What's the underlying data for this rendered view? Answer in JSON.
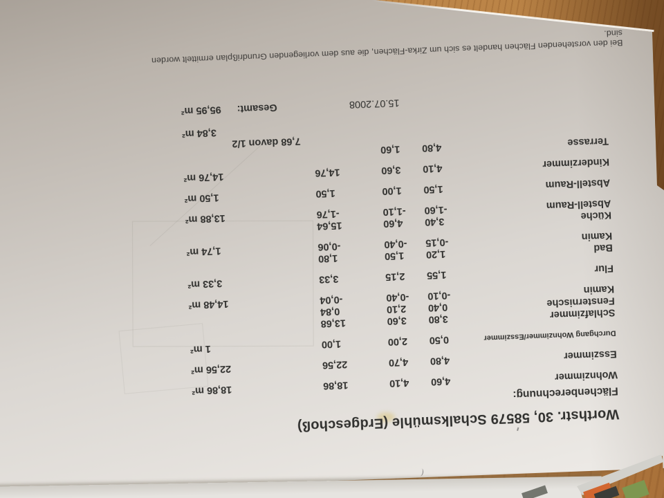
{
  "photo": {
    "surface": "wood-table",
    "wood_color": "#c08a4e",
    "paper_color": "#d9d5d0",
    "text_color": "#30302e"
  },
  "doc": {
    "title": "Worthstr. 30, 58579 Schalksmühle (Erdgeschoß)",
    "section_heading": "Flächenberechnung:",
    "date": "15.07.2008",
    "gesamt_label": "Gesamt:",
    "gesamt_value": "95,95 m²",
    "footer_note": "Bei den vorstehenden Flächen handelt es sich um Zirka-Flächen, die aus dem vorliegenden Grundrißplan ermittelt worden sind.",
    "table": {
      "rows": [
        {
          "name": "Wohnzimmer",
          "d1": "4,60",
          "d2": "4,10",
          "area": "18,86",
          "total": "18,86 m²"
        },
        {
          "name": "Esszimmer",
          "d1": "4,80",
          "d2": "4,70",
          "area": "22,56",
          "total": "22,56 m²"
        },
        {
          "name": "Durchgang Wohnzimmer/Esszimmer",
          "d1": "0,50",
          "d2": "2,00",
          "area": "1,00",
          "total": "1 m²"
        },
        {
          "name": "Schlafzimmer",
          "d1": "3,80",
          "d2": "3,60",
          "area": "13,68",
          "total": ""
        },
        {
          "name": "Fensternische",
          "d1": "0,40",
          "d2": "2,10",
          "area": "0,84",
          "total": ""
        },
        {
          "name": "Kamin",
          "d1": "-0,10",
          "d2": "-0,40",
          "area": "-0,04",
          "total": "14,48 m²"
        },
        {
          "name": "Flur",
          "d1": "1,55",
          "d2": "2,15",
          "area": "3,33",
          "total": "3,33 m²"
        },
        {
          "name": "Bad",
          "d1": "1,20",
          "d2": "1,50",
          "area": "1,80",
          "total": ""
        },
        {
          "name": "Kamin",
          "d1": "-0,15",
          "d2": "-0,40",
          "area": "-0,06",
          "total": "1,74 m²"
        },
        {
          "name": "Küche",
          "d1": "3,40",
          "d2": "4,60",
          "area": "15,64",
          "total": ""
        },
        {
          "name": "Abstell-Raum",
          "d1": "-1,60",
          "d2": "-1,10",
          "area": "-1,76",
          "total": "13,88 m²"
        },
        {
          "name": "Abstell-Raum",
          "d1": "1,50",
          "d2": "1,00",
          "area": "1,50",
          "total": "1,50 m²"
        },
        {
          "name": "Kinderzimmer",
          "d1": "4,10",
          "d2": "3,60",
          "area": "14,76",
          "total": "14,76 m²"
        },
        {
          "name": "Terrasse",
          "d1": "4,80",
          "d2": "1,60",
          "area": "",
          "total": ""
        },
        {
          "name": "",
          "d1": "",
          "d2": "",
          "area": "7,68 davon 1/2",
          "total": ""
        },
        {
          "name": "",
          "d1": "",
          "d2": "",
          "area": "",
          "total": "3,84 m²"
        }
      ]
    }
  }
}
